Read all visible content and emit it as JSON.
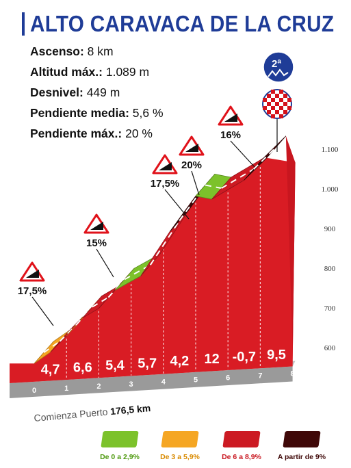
{
  "title": "ALTO CARAVACA DE LA CRUZ",
  "stats": [
    {
      "label": "Ascenso:",
      "value": "8 km"
    },
    {
      "label": "Altitud máx.:",
      "value": "1.089 m"
    },
    {
      "label": "Desnivel:",
      "value": "449 m"
    },
    {
      "label": "Pendiente media:",
      "value": "5,6 %"
    },
    {
      "label": "Pendiente máx.:",
      "value": "20 %"
    }
  ],
  "category_badge": "2ª",
  "start_label": "Comienza Puerto",
  "start_km": "176,5 km",
  "colors": {
    "title": "#1f3c97",
    "green": "#7cc22b",
    "orange": "#f5a623",
    "red": "#cc1a23",
    "dark": "#3f0808"
  },
  "legend": [
    {
      "label": "De 0 a 2,9%",
      "color": "#7cc22b",
      "text_color": "#4f9a10"
    },
    {
      "label": "De 3 a 5,9%",
      "color": "#f5a623",
      "text_color": "#d98a00"
    },
    {
      "label": "De 6 a 8,9%",
      "color": "#cc1a23",
      "text_color": "#c8161f"
    },
    {
      "label": "A partir de 9%",
      "color": "#3f0808",
      "text_color": "#3f0808"
    }
  ],
  "chart_data": {
    "type": "area",
    "xlabel": "Comienza Puerto 176,5 km",
    "x_ticks": [
      "0",
      "1",
      "2",
      "3",
      "4",
      "5",
      "6",
      "7",
      "8"
    ],
    "y_ticks": [
      "600",
      "700",
      "800",
      "900",
      "1.000",
      "1.100"
    ],
    "ylim": [
      600,
      1100
    ],
    "km_gradients": [
      "4,7",
      "6,6",
      "5,4",
      "5,7",
      "4,2",
      "12",
      "-0,7",
      "9,5"
    ],
    "profile": [
      {
        "km": 0.0,
        "alt": 640,
        "cat": "orange"
      },
      {
        "km": 0.5,
        "alt": 664,
        "cat": "red"
      },
      {
        "km": 1.0,
        "alt": 700,
        "cat": "orange"
      },
      {
        "km": 1.5,
        "alt": 740,
        "cat": "red"
      },
      {
        "km": 2.0,
        "alt": 760,
        "cat": "red"
      },
      {
        "km": 2.5,
        "alt": 800,
        "cat": "green"
      },
      {
        "km": 3.3,
        "alt": 830,
        "cat": "red"
      },
      {
        "km": 4.2,
        "alt": 930,
        "cat": "dark"
      },
      {
        "km": 5.0,
        "alt": 1010,
        "cat": "green"
      },
      {
        "km": 5.5,
        "alt": 1000,
        "cat": "red"
      },
      {
        "km": 6.5,
        "alt": 1040,
        "cat": "dark"
      },
      {
        "km": 7.2,
        "alt": 1089
      }
    ],
    "peaks": [
      {
        "label": "17,5%",
        "km": 0.45
      },
      {
        "label": "15%",
        "km": 1.9
      },
      {
        "label": "17,5%",
        "km": 3.3
      },
      {
        "label": "20%",
        "km": 4.2
      },
      {
        "label": "16%",
        "km": 6.6
      }
    ]
  }
}
